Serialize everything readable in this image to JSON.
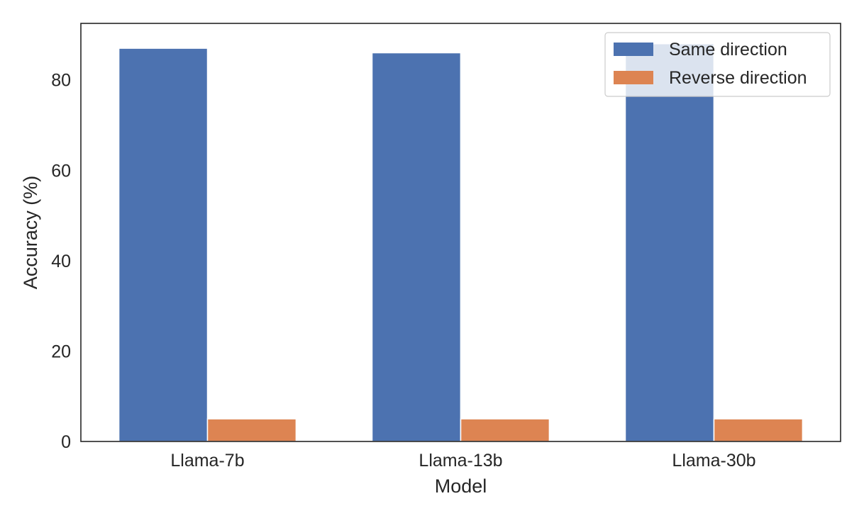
{
  "chart_data": {
    "type": "bar",
    "title": "",
    "xlabel": "Model",
    "ylabel": "Accuracy (%)",
    "categories": [
      "Llama-7b",
      "Llama-13b",
      "Llama-30b"
    ],
    "series": [
      {
        "name": "Same direction",
        "values": [
          87,
          86,
          88
        ],
        "color": "#4c72b0"
      },
      {
        "name": "Reverse direction",
        "values": [
          5,
          5,
          5
        ],
        "color": "#dd8452"
      }
    ],
    "ylim": [
      0,
      92.5
    ],
    "yticks": [
      0,
      20,
      40,
      60,
      80
    ],
    "grid": false,
    "legend_position": "top-right"
  }
}
